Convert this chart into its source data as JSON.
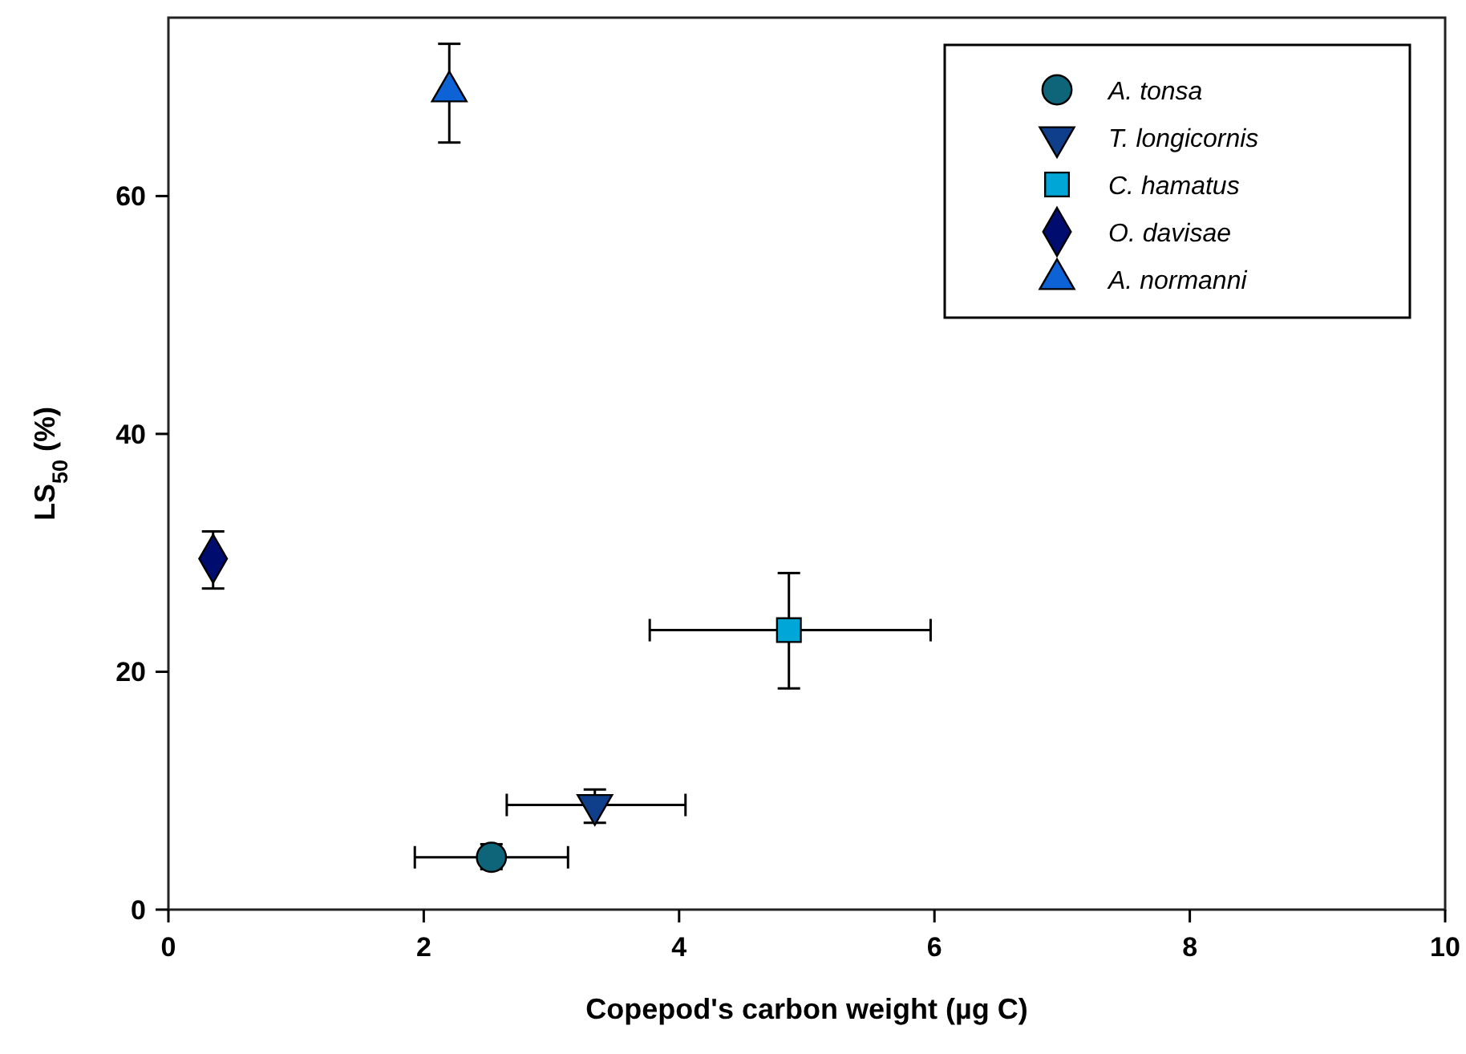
{
  "chart_data": {
    "type": "scatter",
    "xlabel": "Copepod's carbon weight (µg C)",
    "ylabel": "LS$_{50}$ (%)",
    "xlim": [
      0,
      10
    ],
    "xticks": [
      0,
      2,
      4,
      6,
      8,
      10
    ],
    "ylim": [
      0,
      75
    ],
    "yticks": [
      0,
      20,
      40,
      60
    ],
    "grid": false,
    "legend": "top right",
    "series": [
      {
        "name": "A. tonsa",
        "color": "#0e6478",
        "marker": "circle",
        "x": [
          2.53
        ],
        "values": [
          4.4
        ],
        "errors": [
          [
            3.4,
            5.5
          ]
        ],
        "xerrors": [
          [
            1.93,
            3.13
          ]
        ]
      },
      {
        "name": "T. longicornis",
        "color": "#0f3f8a",
        "marker": "triangle-down",
        "x": [
          3.34
        ],
        "values": [
          8.8
        ],
        "errors": [
          [
            7.3,
            10.1
          ]
        ],
        "xerrors": [
          [
            2.65,
            4.05
          ]
        ]
      },
      {
        "name": "C. hamatus",
        "color": "#00a6d6",
        "marker": "square",
        "x": [
          4.86
        ],
        "values": [
          23.5
        ],
        "errors": [
          [
            18.6,
            28.3
          ]
        ],
        "xerrors": [
          [
            3.77,
            5.97
          ]
        ]
      },
      {
        "name": "O. davisae",
        "color": "#000d6e",
        "marker": "diamond",
        "x": [
          0.35
        ],
        "values": [
          29.5
        ],
        "errors": [
          [
            27.0,
            31.8
          ]
        ]
      },
      {
        "name": "A. normanni",
        "color": "#0d63d6",
        "marker": "triangle",
        "x": [
          2.2
        ],
        "values": [
          68.8
        ],
        "errors": [
          [
            64.5,
            72.8
          ]
        ]
      }
    ]
  }
}
